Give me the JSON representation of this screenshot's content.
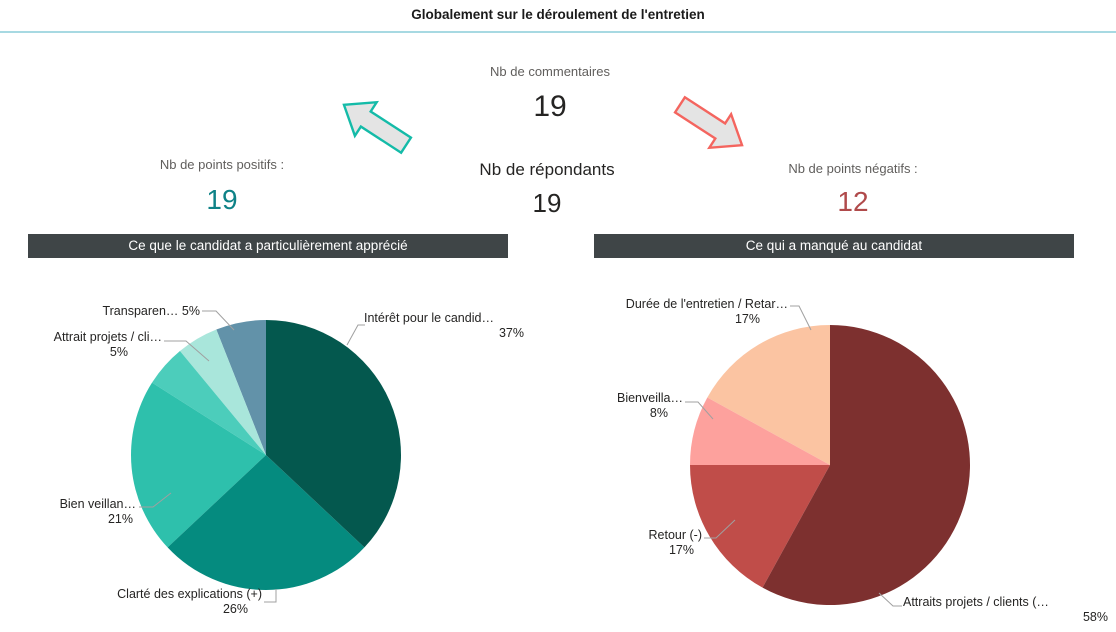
{
  "header": {
    "title": "Globalement sur le déroulement de l'entretien"
  },
  "kpis": {
    "comments": {
      "label": "Nb de commentaires",
      "value": "19"
    },
    "respondents": {
      "label": "Nb de répondants",
      "value": "19"
    },
    "positives": {
      "label": "Nb de points positifs :",
      "value": "19"
    },
    "negatives": {
      "label": "Nb de points négatifs :",
      "value": "12"
    }
  },
  "colors": {
    "divider": "#A7D9E2",
    "panel_header_bg": "#3F4547",
    "positive_accent": "#0E8287",
    "negative_accent": "#B04A4B",
    "arrow_fill": "#E4E4E4",
    "arrow_positive_stroke": "#14BBA8",
    "arrow_negative_stroke": "#F4655F",
    "leader_line": "#A0A0A0"
  },
  "chart_data": [
    {
      "type": "pie",
      "title": "Ce que le candidat a particulièrement apprécié",
      "legend": "none",
      "labels_style": "outside category + percent with leader lines",
      "slices": [
        {
          "label": "Intérêt pour le candid…",
          "pct": 37,
          "pct_text": "37%",
          "color": "#04584E"
        },
        {
          "label": "Clarté des explications (+)",
          "pct": 26,
          "pct_text": "26%",
          "color": "#058B7F"
        },
        {
          "label": "Bien veillan…",
          "pct": 21,
          "pct_text": "21%",
          "color": "#2EC0AC"
        },
        {
          "label": "Attrait projets / cli…",
          "pct": 5,
          "pct_text": "5%",
          "color": "#4CCDBB"
        },
        {
          "label": "Transparen…",
          "pct": 5,
          "pct_text": "5%",
          "color": "#A9E6DB"
        },
        {
          "label": "",
          "pct": 6,
          "pct_text": "6%",
          "color": "#6292A9"
        }
      ]
    },
    {
      "type": "pie",
      "title": "Ce qui a manqué au candidat",
      "legend": "none",
      "labels_style": "outside category + percent with leader lines",
      "slices": [
        {
          "label": "Attraits projets / clients (…",
          "pct": 58,
          "pct_text": "58%",
          "color": "#7D302F"
        },
        {
          "label": "Retour (-)",
          "pct": 17,
          "pct_text": "17%",
          "color": "#C04D49"
        },
        {
          "label": "Bienveilla…",
          "pct": 8,
          "pct_text": "8%",
          "color": "#FDA19D"
        },
        {
          "label": "Durée de l'entretien / Retar…",
          "pct": 17,
          "pct_text": "17%",
          "color": "#FBC4A2"
        }
      ]
    }
  ]
}
